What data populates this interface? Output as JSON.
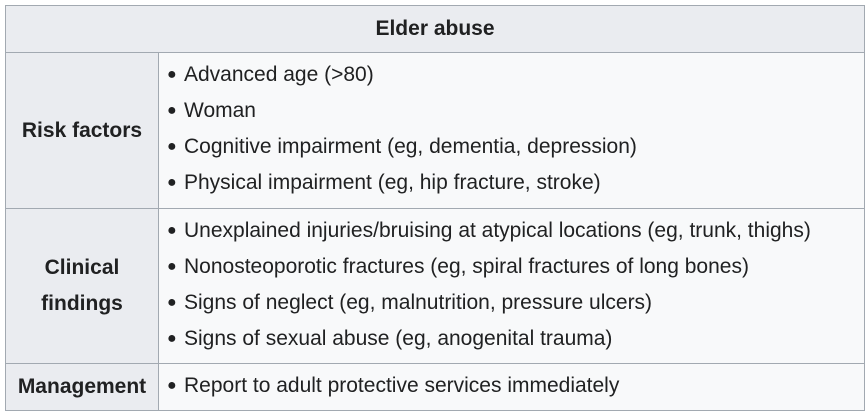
{
  "table": {
    "title": "Elder abuse",
    "rows": [
      {
        "header": "Risk factors",
        "items": [
          "Advanced age (>80)",
          "Woman",
          "Cognitive impairment (eg, dementia, depression)",
          "Physical impairment (eg, hip fracture, stroke)"
        ]
      },
      {
        "header_lines": [
          "Clinical",
          "findings"
        ],
        "items": [
          "Unexplained injuries/bruising at atypical locations (eg, trunk, thighs)",
          "Nonosteoporotic fractures (eg, spiral fractures of long bones)",
          "Signs of neglect (eg, malnutrition, pressure ulcers)",
          "Signs of sexual abuse (eg, anogenital trauma)"
        ]
      },
      {
        "header": "Management",
        "items": [
          "Report to adult protective services immediately"
        ]
      }
    ]
  }
}
